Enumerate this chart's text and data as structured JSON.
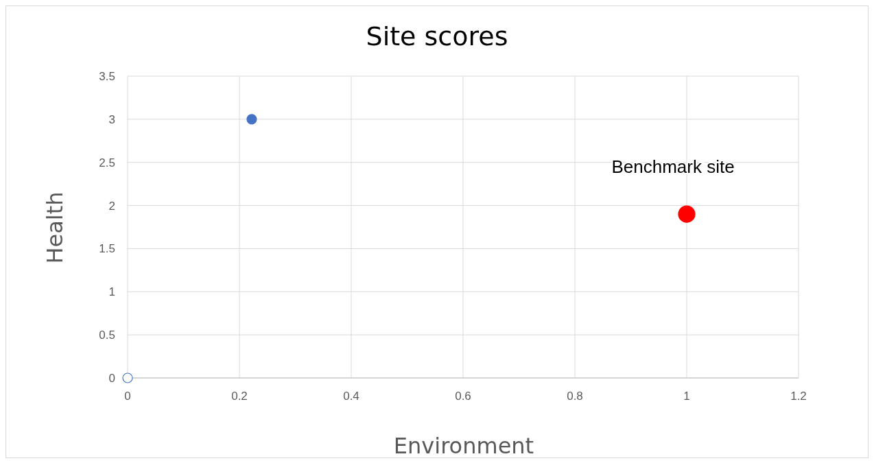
{
  "chart_data": {
    "type": "scatter",
    "title": "Site scores",
    "xlabel": "Environment",
    "ylabel": "Health",
    "series": [
      {
        "x": [
          0.222
        ],
        "values": [
          3
        ],
        "color": "#4472c4"
      },
      {
        "x": [
          0
        ],
        "values": [
          0
        ],
        "color": "#ffffff"
      },
      {
        "x": [
          1
        ],
        "values": [
          1.9
        ],
        "color": "#ff0000"
      }
    ],
    "annotations": [
      {
        "text": "Benchmark site",
        "x": 1,
        "y": 1.9
      }
    ],
    "xlim": [
      0,
      1.2
    ],
    "xticks": [
      0,
      0.2,
      0.4,
      0.6,
      0.8,
      1,
      1.2
    ],
    "ylim": [
      0,
      3.5
    ],
    "yticks": [
      0,
      0.5,
      1,
      1.5,
      2,
      2.5,
      3,
      3.5
    ],
    "grid": true,
    "marker": "circle",
    "legend": false
  }
}
